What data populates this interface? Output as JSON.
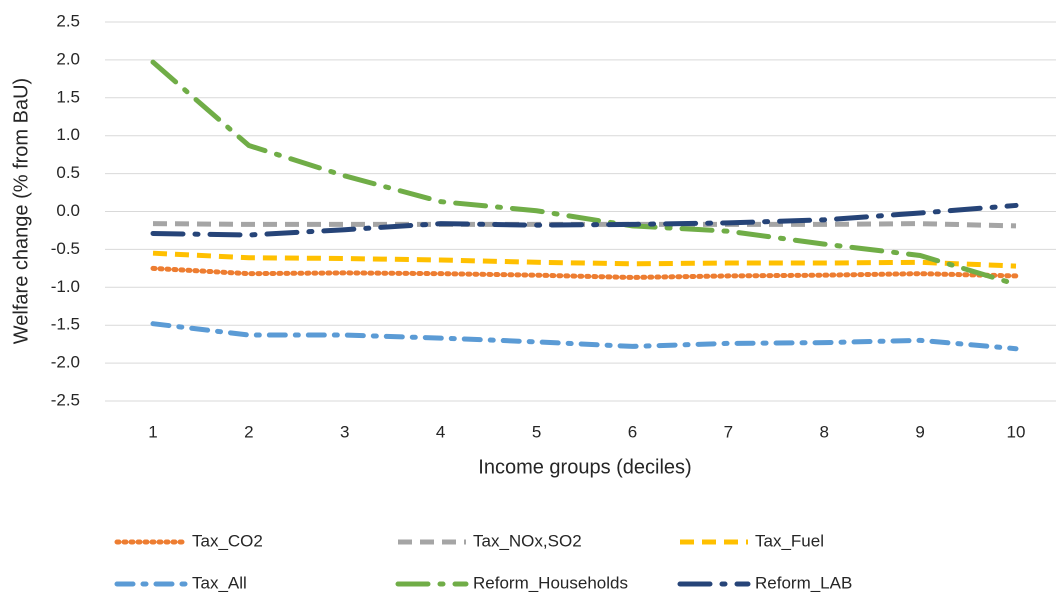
{
  "chart_data": {
    "type": "line",
    "x_label": "Income groups (deciles)",
    "y_label": "Welfare change (% from BaU)",
    "categories": [
      1,
      2,
      3,
      4,
      5,
      6,
      7,
      8,
      9,
      10
    ],
    "ylim": [
      -2.5,
      2.5
    ],
    "yticks": [
      2.5,
      {
        "value": 2,
        "label": "2.0"
      },
      1.5,
      {
        "value": 1,
        "label": "1.0"
      },
      0.5,
      {
        "value": 0,
        "label": "0.0"
      },
      -0.5,
      {
        "value": -1,
        "label": "-1.0"
      },
      -1.5,
      {
        "value": -2,
        "label": "-2.0"
      },
      -2.5
    ],
    "grid": true,
    "legend": "bottom",
    "series": [
      {
        "name": "Tax_CO2",
        "color": "#ed7d31",
        "dash": "dotted",
        "values": [
          -0.75,
          -0.82,
          -0.81,
          -0.82,
          -0.84,
          -0.87,
          -0.85,
          -0.84,
          -0.82,
          -0.85
        ]
      },
      {
        "name": "Tax_NOx,SO2",
        "color": "#a5a5a5",
        "dash": "dashed",
        "values": [
          -0.16,
          -0.17,
          -0.17,
          -0.17,
          -0.17,
          -0.17,
          -0.17,
          -0.17,
          -0.16,
          -0.19
        ]
      },
      {
        "name": "Tax_Fuel",
        "color": "#ffc000",
        "dash": "dashed",
        "values": [
          -0.55,
          -0.61,
          -0.62,
          -0.64,
          -0.67,
          -0.69,
          -0.68,
          -0.68,
          -0.67,
          -0.72
        ]
      },
      {
        "name": "Tax_All",
        "color": "#5b9bd5",
        "dash": "dash-dot",
        "values": [
          -1.48,
          -1.63,
          -1.63,
          -1.67,
          -1.72,
          -1.78,
          -1.74,
          -1.73,
          -1.7,
          -1.81
        ]
      },
      {
        "name": "Reform_Households",
        "color": "#70ad47",
        "dash": "long-dash-dot",
        "values": [
          1.97,
          0.87,
          0.47,
          0.13,
          0.01,
          -0.19,
          -0.26,
          -0.43,
          -0.58,
          -0.96
        ]
      },
      {
        "name": "Reform_LAB",
        "color": "#264478",
        "dash": "long-dash-dot",
        "values": [
          -0.29,
          -0.31,
          -0.24,
          -0.16,
          -0.18,
          -0.17,
          -0.15,
          -0.11,
          -0.02,
          0.08
        ]
      }
    ]
  }
}
